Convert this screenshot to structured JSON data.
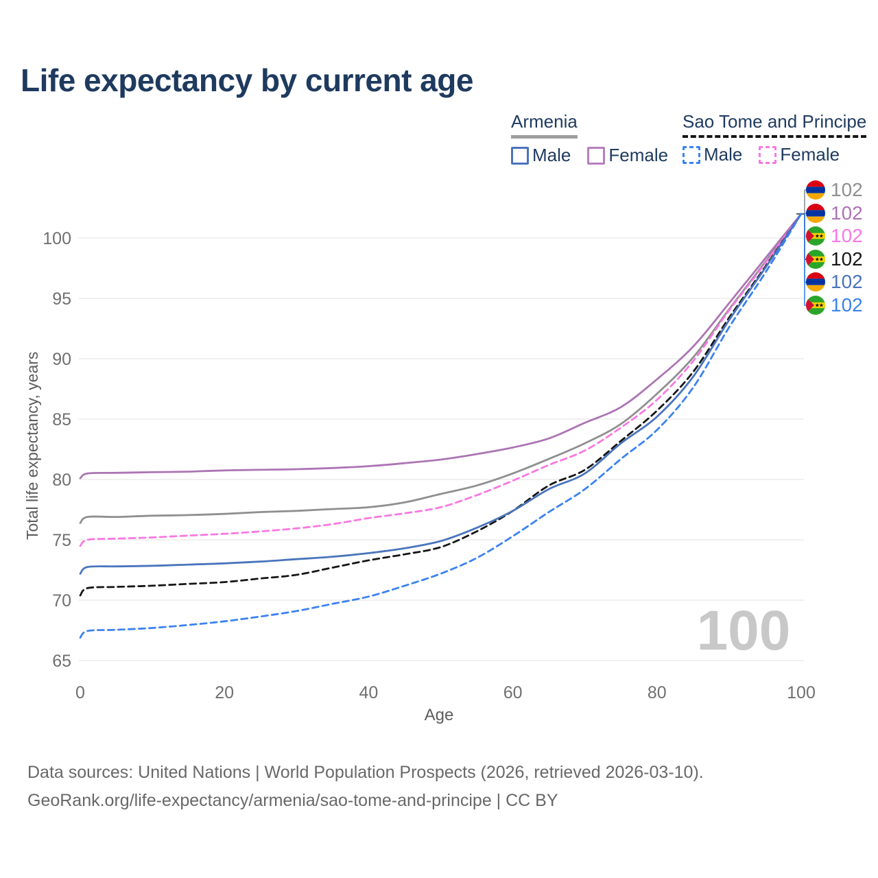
{
  "title": "Life expectancy by current age",
  "watermark": "100",
  "legend": {
    "groups": [
      {
        "name": "Armenia",
        "items": [
          {
            "label": "Male"
          },
          {
            "label": "Female"
          }
        ]
      },
      {
        "name": "Sao Tome and Principe",
        "items": [
          {
            "label": "Male"
          },
          {
            "label": "Female"
          }
        ]
      }
    ]
  },
  "footer": {
    "line1": "Data sources: United Nations | World Population Prospects (2026, retrieved 2026-03-10).",
    "line2": "GeoRank.org/life-expectancy/armenia/sao-tome-and-principe | CC BY"
  },
  "colors": {
    "title_text": "#1e3a5f",
    "axis_text": "#6f6f6f",
    "gridline": "#ececec",
    "watermark": "#c8c8c8",
    "armenia_underline": "#9e9e9e",
    "stp_underline": "#161616"
  },
  "chart_data": {
    "type": "line",
    "title": "Life expectancy by current age",
    "xlabel": "Age",
    "ylabel": "Total life expectancy, years",
    "xlim": [
      0,
      100
    ],
    "ylim": [
      63.5,
      103
    ],
    "xticks": [
      0,
      20,
      40,
      60,
      80,
      100
    ],
    "yticks": [
      65,
      70,
      75,
      80,
      85,
      90,
      95,
      100
    ],
    "grid": "horizontal-only",
    "legend_position": "top-right",
    "x": [
      0,
      1,
      5,
      10,
      15,
      20,
      25,
      30,
      35,
      40,
      45,
      50,
      55,
      60,
      65,
      70,
      75,
      80,
      85,
      90,
      95,
      100
    ],
    "series": [
      {
        "name": "Armenia — both sexes",
        "country": "Armenia",
        "sex": "all",
        "style": "solid",
        "color": "#8f8f8f",
        "end_label": "102",
        "flag": "armenia",
        "values": [
          76.4,
          76.9,
          76.9,
          77.0,
          77.05,
          77.15,
          77.3,
          77.4,
          77.55,
          77.7,
          78.1,
          78.8,
          79.5,
          80.5,
          81.7,
          83.0,
          84.6,
          87.1,
          90.1,
          94.1,
          98.0,
          102
        ]
      },
      {
        "name": "Armenia — Female",
        "country": "Armenia",
        "sex": "female",
        "style": "solid",
        "color": "#ac74b4",
        "end_label": "102",
        "flag": "armenia",
        "values": [
          80.1,
          80.5,
          80.55,
          80.6,
          80.65,
          80.75,
          80.8,
          80.85,
          80.95,
          81.1,
          81.35,
          81.65,
          82.1,
          82.65,
          83.4,
          84.7,
          86.0,
          88.3,
          91.0,
          94.6,
          98.3,
          102
        ]
      },
      {
        "name": "Sao Tome and Principe — Female",
        "country": "Sao Tome and Principe",
        "sex": "female",
        "style": "dashed",
        "color": "#f878e2",
        "end_label": "102",
        "flag": "stp",
        "values": [
          74.5,
          75.0,
          75.1,
          75.2,
          75.35,
          75.5,
          75.7,
          75.95,
          76.3,
          76.8,
          77.2,
          77.7,
          78.7,
          79.9,
          81.2,
          82.4,
          84.3,
          86.6,
          89.8,
          94.0,
          97.9,
          102
        ]
      },
      {
        "name": "Sao Tome and Principe — both sexes",
        "country": "Sao Tome and Principe",
        "sex": "all",
        "style": "dashed",
        "color": "#161616",
        "end_label": "102",
        "flag": "stp",
        "values": [
          70.4,
          71.0,
          71.1,
          71.2,
          71.35,
          71.5,
          71.8,
          72.1,
          72.7,
          73.3,
          73.8,
          74.4,
          75.7,
          77.4,
          79.5,
          80.8,
          83.2,
          85.7,
          88.9,
          93.4,
          97.6,
          102
        ]
      },
      {
        "name": "Armenia — Male",
        "country": "Armenia",
        "sex": "male",
        "style": "solid",
        "color": "#4a74bc",
        "end_label": "102",
        "flag": "armenia",
        "values": [
          72.2,
          72.75,
          72.8,
          72.85,
          72.95,
          73.05,
          73.2,
          73.4,
          73.6,
          73.9,
          74.3,
          74.9,
          76.0,
          77.4,
          79.2,
          80.5,
          83.0,
          85.2,
          88.5,
          93.2,
          97.5,
          102
        ]
      },
      {
        "name": "Sao Tome and Principe — Male",
        "country": "Sao Tome and Principe",
        "sex": "male",
        "style": "dashed",
        "color": "#3b82f0",
        "end_label": "102",
        "flag": "stp",
        "values": [
          66.9,
          67.45,
          67.55,
          67.7,
          67.95,
          68.25,
          68.65,
          69.1,
          69.7,
          70.3,
          71.2,
          72.2,
          73.5,
          75.3,
          77.3,
          79.2,
          81.7,
          84.1,
          87.6,
          92.6,
          97.1,
          102
        ]
      }
    ]
  }
}
